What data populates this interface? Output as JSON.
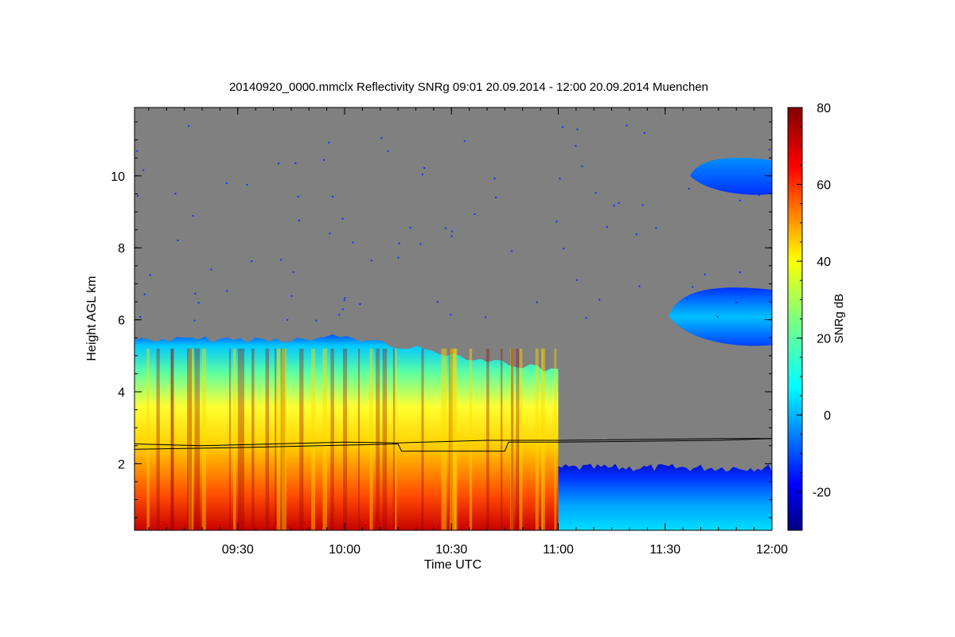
{
  "chart_data": {
    "type": "heatmap",
    "title": "20140920_0000.mmclx Reflectivity SNRg   09:01 20.09.2014 - 12:00 20.09.2014 Muenchen",
    "xlabel": "Time UTC",
    "ylabel": "Height AGL km",
    "x_range": [
      "09:01",
      "12:00"
    ],
    "y_range": [
      0.15,
      11.9
    ],
    "x_ticks": [
      "09:30",
      "10:00",
      "10:30",
      "11:00",
      "11:30",
      "12:00"
    ],
    "y_ticks": [
      2,
      4,
      6,
      8,
      10
    ],
    "colorbar": {
      "label": "SNRg dB",
      "range": [
        -30,
        80
      ],
      "ticks": [
        -20,
        0,
        20,
        40,
        60,
        80
      ],
      "colormap": "jet"
    },
    "no_signal_color": "#808080",
    "regions": [
      {
        "name": "low-level echo",
        "x_range": [
          "09:01",
          "11:00"
        ],
        "height_km": [
          0.15,
          2.5
        ],
        "snr_db": [
          40,
          75
        ]
      },
      {
        "name": "mid-level echo top",
        "x_range": [
          "09:01",
          "11:00"
        ],
        "height_km": [
          2.5,
          5.7
        ],
        "snr_db": [
          0,
          45
        ]
      },
      {
        "name": "post-11:00 low echo",
        "x_range": [
          "11:00",
          "12:00"
        ],
        "height_km": [
          0.15,
          2.0
        ],
        "snr_db": [
          -20,
          15
        ]
      },
      {
        "name": "high cloud",
        "x_range": [
          "11:37",
          "12:00"
        ],
        "height_km": [
          9.5,
          10.5
        ],
        "snr_db": [
          -15,
          5
        ]
      },
      {
        "name": "mid cloud layer",
        "x_range": [
          "11:31",
          "12:00"
        ],
        "height_km": [
          5.3,
          6.9
        ],
        "snr_db": [
          -10,
          20
        ]
      }
    ],
    "lines": [
      {
        "name": "",
        "points": [
          [
            "09:01",
            2.55
          ],
          [
            "09:20",
            2.5
          ],
          [
            "09:40",
            2.55
          ],
          [
            "10:00",
            2.6
          ],
          [
            "10:15",
            2.58
          ],
          [
            "10:40",
            2.65
          ],
          [
            "11:00",
            2.65
          ],
          [
            "11:45",
            2.7
          ],
          [
            "12:00",
            2.7
          ]
        ]
      },
      {
        "name": "",
        "points": [
          [
            "09:01",
            2.4
          ],
          [
            "09:30",
            2.45
          ],
          [
            "10:15",
            2.55
          ],
          [
            "10:16",
            2.35
          ],
          [
            "10:45",
            2.35
          ],
          [
            "10:46",
            2.6
          ],
          [
            "11:00",
            2.6
          ],
          [
            "11:45",
            2.65
          ],
          [
            "12:00",
            2.7
          ]
        ]
      }
    ]
  }
}
